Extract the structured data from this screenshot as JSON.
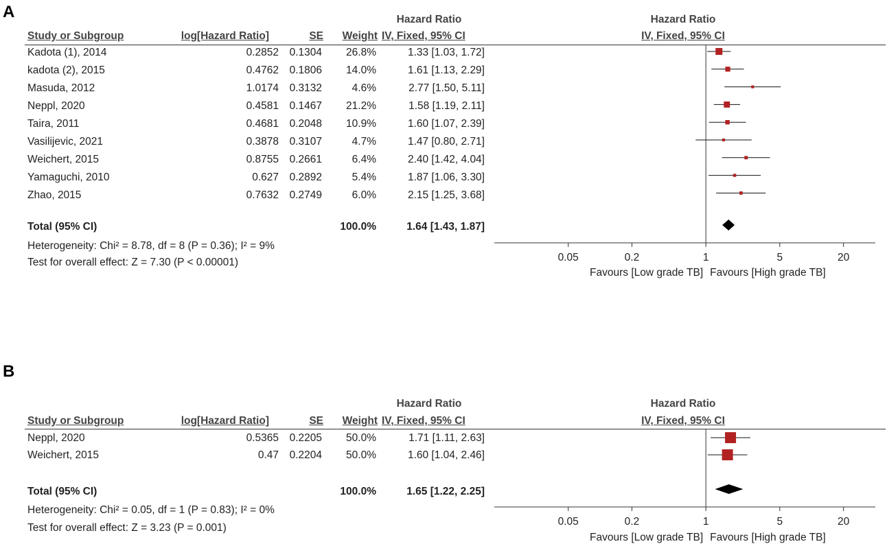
{
  "chart_data": [
    {
      "type": "forest",
      "panel_label": "A",
      "headers": {
        "study": "Study or Subgroup",
        "loghr": "log[Hazard Ratio]",
        "se": "SE",
        "weight": "Weight",
        "ci_group": "Hazard Ratio",
        "ci_sub": "IV, Fixed, 95% CI",
        "plot_group": "Hazard Ratio",
        "plot_sub": "IV, Fixed, 95% CI"
      },
      "studies": [
        {
          "study": "Kadota (1), 2014",
          "loghr": "0.2852",
          "se": "0.1304",
          "weight": "26.8%",
          "ci_text": "1.33 [1.03, 1.72]",
          "hr": 1.33,
          "lo": 1.03,
          "hi": 1.72,
          "w": 26.8
        },
        {
          "study": "kadota (2), 2015",
          "loghr": "0.4762",
          "se": "0.1806",
          "weight": "14.0%",
          "ci_text": "1.61 [1.13, 2.29]",
          "hr": 1.61,
          "lo": 1.13,
          "hi": 2.29,
          "w": 14.0
        },
        {
          "study": "Masuda, 2012",
          "loghr": "1.0174",
          "se": "0.3132",
          "weight": "4.6%",
          "ci_text": "2.77 [1.50, 5.11]",
          "hr": 2.77,
          "lo": 1.5,
          "hi": 5.11,
          "w": 4.6
        },
        {
          "study": "Neppl, 2020",
          "loghr": "0.4581",
          "se": "0.1467",
          "weight": "21.2%",
          "ci_text": "1.58 [1.19, 2.11]",
          "hr": 1.58,
          "lo": 1.19,
          "hi": 2.11,
          "w": 21.2
        },
        {
          "study": "Taira, 2011",
          "loghr": "0.4681",
          "se": "0.2048",
          "weight": "10.9%",
          "ci_text": "1.60 [1.07, 2.39]",
          "hr": 1.6,
          "lo": 1.07,
          "hi": 2.39,
          "w": 10.9
        },
        {
          "study": "Vasilijevic, 2021",
          "loghr": "0.3878",
          "se": "0.3107",
          "weight": "4.7%",
          "ci_text": "1.47 [0.80, 2.71]",
          "hr": 1.47,
          "lo": 0.8,
          "hi": 2.71,
          "w": 4.7
        },
        {
          "study": "Weichert, 2015",
          "loghr": "0.8755",
          "se": "0.2661",
          "weight": "6.4%",
          "ci_text": "2.40 [1.42, 4.04]",
          "hr": 2.4,
          "lo": 1.42,
          "hi": 4.04,
          "w": 6.4
        },
        {
          "study": "Yamaguchi, 2010",
          "loghr": "0.627",
          "se": "0.2892",
          "weight": "5.4%",
          "ci_text": "1.87 [1.06, 3.30]",
          "hr": 1.87,
          "lo": 1.06,
          "hi": 3.3,
          "w": 5.4
        },
        {
          "study": "Zhao, 2015",
          "loghr": "0.7632",
          "se": "0.2749",
          "weight": "6.0%",
          "ci_text": "2.15 [1.25, 3.68]",
          "hr": 2.15,
          "lo": 1.25,
          "hi": 3.68,
          "w": 6.0
        }
      ],
      "total": {
        "label": "Total (95% CI)",
        "weight": "100.0%",
        "ci_text": "1.64 [1.43, 1.87]",
        "hr": 1.64,
        "lo": 1.43,
        "hi": 1.87
      },
      "heterogeneity": "Heterogeneity: Chi² = 8.78, df = 8 (P = 0.36); I² = 9%",
      "overall_effect": "Test for overall effect: Z = 7.30 (P < 0.00001)",
      "axis": {
        "scale": "log",
        "xlim": [
          0.01,
          40
        ],
        "ticks": [
          0.05,
          0.2,
          1,
          5,
          20
        ],
        "tick_labels": [
          "0.05",
          "0.2",
          "1",
          "5",
          "20"
        ]
      },
      "favours_left": "Favours [Low grade TB]",
      "favours_right": "Favours [High grade TB]",
      "marker_color": "#b22222"
    },
    {
      "type": "forest",
      "panel_label": "B",
      "headers": {
        "study": "Study or Subgroup",
        "loghr": "log[Hazard Ratio]",
        "se": "SE",
        "weight": "Weight",
        "ci_group": "Hazard Ratio",
        "ci_sub": "IV, Fixed, 95% CI",
        "plot_group": "Hazard Ratio",
        "plot_sub": "IV, Fixed, 95% CI"
      },
      "studies": [
        {
          "study": "Neppl, 2020",
          "loghr": "0.5365",
          "se": "0.2205",
          "weight": "50.0%",
          "ci_text": "1.71 [1.11, 2.63]",
          "hr": 1.71,
          "lo": 1.11,
          "hi": 2.63,
          "w": 50.0
        },
        {
          "study": "Weichert, 2015",
          "loghr": "0.47",
          "se": "0.2204",
          "weight": "50.0%",
          "ci_text": "1.60 [1.04, 2.46]",
          "hr": 1.6,
          "lo": 1.04,
          "hi": 2.46,
          "w": 50.0
        }
      ],
      "total": {
        "label": "Total (95% CI)",
        "weight": "100.0%",
        "ci_text": "1.65 [1.22, 2.25]",
        "hr": 1.65,
        "lo": 1.22,
        "hi": 2.25
      },
      "heterogeneity": "Heterogeneity: Chi² = 0.05, df = 1 (P = 0.83); I² = 0%",
      "overall_effect": "Test for overall effect: Z = 3.23 (P = 0.001)",
      "axis": {
        "scale": "log",
        "xlim": [
          0.01,
          40
        ],
        "ticks": [
          0.05,
          0.2,
          1,
          5,
          20
        ],
        "tick_labels": [
          "0.05",
          "0.2",
          "1",
          "5",
          "20"
        ]
      },
      "favours_left": "Favours [Low grade TB]",
      "favours_right": "Favours [High grade TB]",
      "marker_color": "#b22222"
    }
  ]
}
